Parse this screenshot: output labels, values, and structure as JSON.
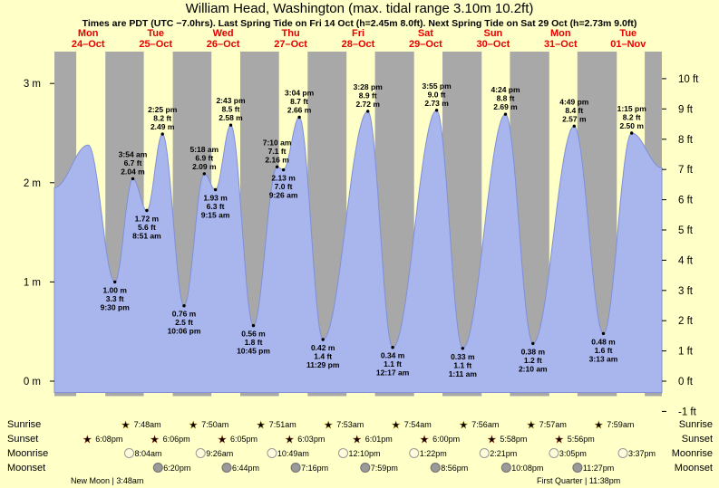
{
  "header": {
    "title": "William Head, Washington (max. tidal range 3.10m 10.2ft)",
    "subtitle": "Times are PDT (UTC −7.0hrs). Last Spring Tide on Fri 14 Oct (h=2.45m 8.0ft). Next Spring Tide on Sat 29 Oct (h=2.73m 9.0ft)"
  },
  "chart_data": {
    "type": "area",
    "title": "William Head, Washington tide curve",
    "x_axis": {
      "start_day_label": "Mon 24-Oct",
      "num_days": 9
    },
    "y_axis_left": {
      "unit": "m",
      "ticks": [
        "3 m",
        "2 m",
        "1 m",
        "0 m"
      ]
    },
    "y_axis_right": {
      "unit": "ft",
      "ticks": [
        "10 ft",
        "9 ft",
        "8 ft",
        "7 ft",
        "6 ft",
        "5 ft",
        "4 ft",
        "3 ft",
        "2 ft",
        "1 ft",
        "0 ft",
        "-1 ft"
      ]
    },
    "day_labels": [
      {
        "weekday": "Mon",
        "date": "24–Oct"
      },
      {
        "weekday": "Tue",
        "date": "25–Oct"
      },
      {
        "weekday": "Wed",
        "date": "26–Oct"
      },
      {
        "weekday": "Thu",
        "date": "27–Oct"
      },
      {
        "weekday": "Fri",
        "date": "28–Oct"
      },
      {
        "weekday": "Sat",
        "date": "29–Oct"
      },
      {
        "weekday": "Sun",
        "date": "30–Oct"
      },
      {
        "weekday": "Mon",
        "date": "31–Oct"
      },
      {
        "weekday": "Tue",
        "date": "01–Nov"
      }
    ],
    "tide_events": [
      {
        "t": 0.0,
        "h": 1.95,
        "type": "edge",
        "annotated": false
      },
      {
        "t": 0.5,
        "h": 2.38,
        "type": "high",
        "annotated": false
      },
      {
        "t": 0.8958,
        "h": 1.0,
        "type": "low",
        "annotated": true,
        "lines": [
          "1.00 m",
          "3.3 ft",
          "9:30 pm"
        ]
      },
      {
        "t": 1.1625,
        "h": 2.04,
        "type": "high",
        "annotated": true,
        "lines": [
          "3:54 am",
          "6.7 ft",
          "2.04 m"
        ]
      },
      {
        "t": 1.3688,
        "h": 1.72,
        "type": "low",
        "annotated": true,
        "lines": [
          "1.72 m",
          "5.6 ft",
          "8:51 am"
        ]
      },
      {
        "t": 1.6007,
        "h": 2.49,
        "type": "high",
        "annotated": true,
        "lines": [
          "2:25 pm",
          "8.2 ft",
          "2.49 m"
        ]
      },
      {
        "t": 1.9208,
        "h": 0.76,
        "type": "low",
        "annotated": true,
        "lines": [
          "0.76 m",
          "2.5 ft",
          "10:06 pm"
        ]
      },
      {
        "t": 2.2208,
        "h": 2.09,
        "type": "high",
        "annotated": true,
        "lines": [
          "5:18 am",
          "6.9 ft",
          "2.09 m"
        ]
      },
      {
        "t": 2.3854,
        "h": 1.93,
        "type": "low",
        "annotated": true,
        "lines": [
          "1.93 m",
          "6.3 ft",
          "9:15 am"
        ]
      },
      {
        "t": 2.6132,
        "h": 2.58,
        "type": "high",
        "annotated": true,
        "lines": [
          "2:43 pm",
          "8.5 ft",
          "2.58 m"
        ]
      },
      {
        "t": 2.9479,
        "h": 0.56,
        "type": "low",
        "annotated": true,
        "lines": [
          "0.56 m",
          "1.8 ft",
          "10:45 pm"
        ]
      },
      {
        "t": 3.2986,
        "h": 2.16,
        "type": "high",
        "annotated": true,
        "lines": [
          "7:10 am",
          "7.1 ft",
          "2.16 m"
        ]
      },
      {
        "t": 3.3931,
        "h": 2.13,
        "type": "low",
        "annotated": true,
        "lines": [
          "2.13 m",
          "7.0 ft",
          "9:26 am"
        ]
      },
      {
        "t": 3.6278,
        "h": 2.66,
        "type": "high",
        "annotated": true,
        "lines": [
          "3:04 pm",
          "8.7 ft",
          "2.66 m"
        ]
      },
      {
        "t": 3.9785,
        "h": 0.42,
        "type": "low",
        "annotated": true,
        "lines": [
          "0.42 m",
          "1.4 ft",
          "11:29 pm"
        ]
      },
      {
        "t": 4.6444,
        "h": 2.72,
        "type": "high",
        "annotated": true,
        "lines": [
          "3:28 pm",
          "8.9 ft",
          "2.72 m"
        ]
      },
      {
        "t": 5.0118,
        "h": 0.34,
        "type": "low",
        "annotated": true,
        "lines": [
          "0.34 m",
          "1.1 ft",
          "12:17 am"
        ]
      },
      {
        "t": 5.6632,
        "h": 2.73,
        "type": "high",
        "annotated": true,
        "lines": [
          "3:55 pm",
          "9.0 ft",
          "2.73 m"
        ]
      },
      {
        "t": 6.0493,
        "h": 0.33,
        "type": "low",
        "annotated": true,
        "lines": [
          "0.33 m",
          "1.1 ft",
          "1:11 am"
        ]
      },
      {
        "t": 6.6833,
        "h": 2.69,
        "type": "high",
        "annotated": true,
        "lines": [
          "4:24 pm",
          "8.8 ft",
          "2.69 m"
        ]
      },
      {
        "t": 7.0903,
        "h": 0.38,
        "type": "low",
        "annotated": true,
        "lines": [
          "0.38 m",
          "1.2 ft",
          "2:10 am"
        ]
      },
      {
        "t": 7.7007,
        "h": 2.57,
        "type": "high",
        "annotated": true,
        "lines": [
          "4:49 pm",
          "8.4 ft",
          "2.57 m"
        ]
      },
      {
        "t": 8.134,
        "h": 0.48,
        "type": "low",
        "annotated": true,
        "lines": [
          "0.48 m",
          "1.6 ft",
          "3:13 am"
        ]
      },
      {
        "t": 8.5521,
        "h": 2.5,
        "type": "high",
        "annotated": true,
        "lines": [
          "1:15 pm",
          "8.2 ft",
          "2.50 m"
        ]
      },
      {
        "t": 9.0,
        "h": 2.15,
        "type": "edge",
        "annotated": false
      }
    ],
    "daylight_bands": [
      [
        0.324,
        0.7556
      ],
      [
        1.325,
        1.7542
      ],
      [
        2.3264,
        2.7535
      ],
      [
        3.3271,
        3.7521
      ],
      [
        4.3285,
        4.7507
      ],
      [
        5.3292,
        5.75
      ],
      [
        6.3306,
        6.7486
      ],
      [
        7.3313,
        7.7472
      ],
      [
        8.3326,
        8.7458
      ]
    ],
    "colors": {
      "page_bg": "#ffffc8",
      "day_band": "#ffffc8",
      "night_band": "#a8a8a8",
      "tide_fill": "#a9b5ed",
      "tide_edge": "#7f90d8",
      "date_red": "#e60000"
    }
  },
  "astro": {
    "rows": [
      {
        "key": "sunrise",
        "label": "Sunrise",
        "icon": "sunrise-star-icon",
        "icon_color": "#f5c518",
        "icon_stroke": "#a07800",
        "entries": [
          {
            "time": "7:48am",
            "t": 1.325
          },
          {
            "time": "7:50am",
            "t": 2.3264
          },
          {
            "time": "7:51am",
            "t": 3.3271
          },
          {
            "time": "7:53am",
            "t": 4.3285
          },
          {
            "time": "7:54am",
            "t": 5.3292
          },
          {
            "time": "7:56am",
            "t": 6.3306
          },
          {
            "time": "7:57am",
            "t": 7.3313
          },
          {
            "time": "7:59am",
            "t": 8.3326
          }
        ]
      },
      {
        "key": "sunset",
        "label": "Sunset",
        "icon": "sunset-star-icon",
        "icon_color": "#e8581a",
        "icon_stroke": "#9a2f00",
        "entries": [
          {
            "time": "6:08pm",
            "t": 0.7556
          },
          {
            "time": "6:06pm",
            "t": 1.7542
          },
          {
            "time": "6:05pm",
            "t": 2.7535
          },
          {
            "time": "6:03pm",
            "t": 3.7521
          },
          {
            "time": "6:01pm",
            "t": 4.7507
          },
          {
            "time": "6:00pm",
            "t": 5.75
          },
          {
            "time": "5:58pm",
            "t": 6.7486
          },
          {
            "time": "5:56pm",
            "t": 7.7472
          }
        ]
      },
      {
        "key": "moonrise",
        "label": "Moonrise",
        "icon": "moonrise-circle-icon",
        "icon_color": "#fffbdd",
        "icon_stroke": "#999999",
        "entries": [
          {
            "time": "8:04am",
            "t": 1.3361
          },
          {
            "time": "9:26am",
            "t": 2.3931
          },
          {
            "time": "10:49am",
            "t": 3.4507
          },
          {
            "time": "12:10pm",
            "t": 4.5069
          },
          {
            "time": "1:22pm",
            "t": 5.5569
          },
          {
            "time": "2:21pm",
            "t": 6.5979
          },
          {
            "time": "3:05pm",
            "t": 7.6285
          },
          {
            "time": "3:37pm",
            "t": 8.6507
          }
        ]
      },
      {
        "key": "moonset",
        "label": "Moonset",
        "icon": "moonset-circle-icon",
        "icon_color": "#9a9a9a",
        "icon_stroke": "#6f6f6f",
        "entries": [
          {
            "time": "6:20pm",
            "t": 1.7639
          },
          {
            "time": "6:44pm",
            "t": 2.7806
          },
          {
            "time": "7:16pm",
            "t": 3.8028
          },
          {
            "time": "7:59pm",
            "t": 4.8326
          },
          {
            "time": "8:56pm",
            "t": 5.8722
          },
          {
            "time": "10:08pm",
            "t": 6.9222
          },
          {
            "time": "11:27pm",
            "t": 7.9771
          }
        ]
      }
    ],
    "moon_phases": [
      {
        "name": "New Moon",
        "time": "3:48am"
      },
      {
        "name": "First Quarter",
        "time": "11:38pm"
      }
    ]
  }
}
